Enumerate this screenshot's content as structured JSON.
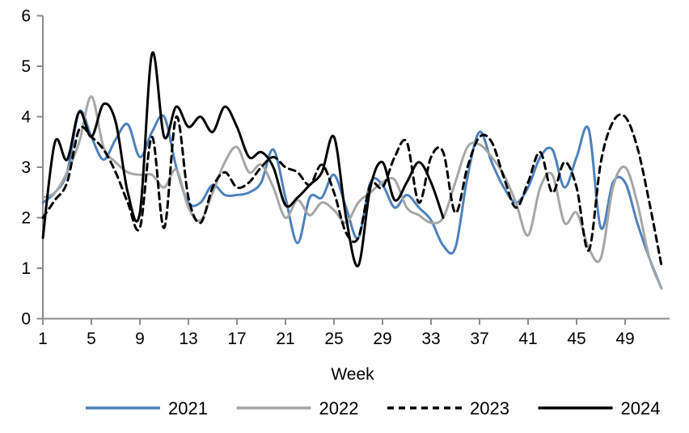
{
  "chart_data": {
    "type": "line",
    "title": "",
    "xlabel": "Week",
    "ylabel": "",
    "ylim": [
      0,
      6
    ],
    "yticks": [
      0,
      1,
      2,
      3,
      4,
      5,
      6
    ],
    "xticks": [
      1,
      5,
      9,
      13,
      17,
      21,
      25,
      29,
      33,
      37,
      41,
      45,
      49
    ],
    "x_weeks": 52,
    "grid": false,
    "legend_position": "bottom",
    "axis_color": "#8c8c8c",
    "series": [
      {
        "name": "2021",
        "color": "#4F81BD",
        "dash": null,
        "values": [
          2.3,
          2.5,
          2.9,
          4.1,
          3.6,
          3.15,
          3.55,
          3.85,
          3.2,
          3.7,
          4.0,
          3.0,
          2.3,
          2.3,
          2.65,
          2.45,
          2.45,
          2.5,
          2.7,
          3.35,
          2.4,
          1.5,
          2.4,
          2.4,
          2.85,
          2.2,
          1.6,
          2.7,
          2.65,
          2.2,
          2.45,
          2.2,
          1.95,
          1.45,
          1.4,
          2.8,
          3.7,
          3.1,
          2.6,
          2.3,
          2.6,
          3.2,
          3.35,
          2.6,
          3.2,
          3.75,
          1.8,
          2.7,
          2.7,
          1.9,
          1.2,
          0.6
        ]
      },
      {
        "name": "2022",
        "color": "#A6A6A6",
        "dash": null,
        "values": [
          2.4,
          2.5,
          2.9,
          3.5,
          4.4,
          3.4,
          3.1,
          2.9,
          2.85,
          2.85,
          2.6,
          2.95,
          2.2,
          1.95,
          2.5,
          3.1,
          3.4,
          2.9,
          3.05,
          2.6,
          2.0,
          2.35,
          2.05,
          2.3,
          2.15,
          1.9,
          2.3,
          2.5,
          2.7,
          2.75,
          2.2,
          2.05,
          1.9,
          2.0,
          2.7,
          3.4,
          3.45,
          3.2,
          2.85,
          2.3,
          1.65,
          2.6,
          2.85,
          1.9,
          2.1,
          1.4,
          1.2,
          2.6,
          3.0,
          2.3,
          1.2,
          0.6
        ]
      },
      {
        "name": "2023",
        "color": "#000000",
        "dash": "8 6",
        "values": [
          2.0,
          2.35,
          2.7,
          3.75,
          3.6,
          3.35,
          2.9,
          2.3,
          1.8,
          3.6,
          1.8,
          4.0,
          2.4,
          1.9,
          2.6,
          2.9,
          2.6,
          2.7,
          3.0,
          3.2,
          3.0,
          2.9,
          2.65,
          3.05,
          2.5,
          1.7,
          1.6,
          2.65,
          2.6,
          3.2,
          3.5,
          2.3,
          3.2,
          3.3,
          2.1,
          3.0,
          3.6,
          3.5,
          2.8,
          2.2,
          2.7,
          3.3,
          2.5,
          3.1,
          2.6,
          1.35,
          3.1,
          3.9,
          4.0,
          3.4,
          2.3,
          1.05
        ]
      },
      {
        "name": "2024",
        "color": "#000000",
        "dash": null,
        "values": [
          1.6,
          3.5,
          3.15,
          4.1,
          3.6,
          4.25,
          3.9,
          2.5,
          2.1,
          5.25,
          3.6,
          4.2,
          3.8,
          4.0,
          3.7,
          4.2,
          3.8,
          3.2,
          3.3,
          3.0,
          2.25,
          2.4,
          2.65,
          2.9,
          3.6,
          2.0,
          1.05,
          2.6,
          3.1,
          2.35,
          2.7,
          3.1,
          2.7,
          2.0
        ]
      }
    ],
    "legend": [
      "2021",
      "2022",
      "2023",
      "2024"
    ]
  }
}
